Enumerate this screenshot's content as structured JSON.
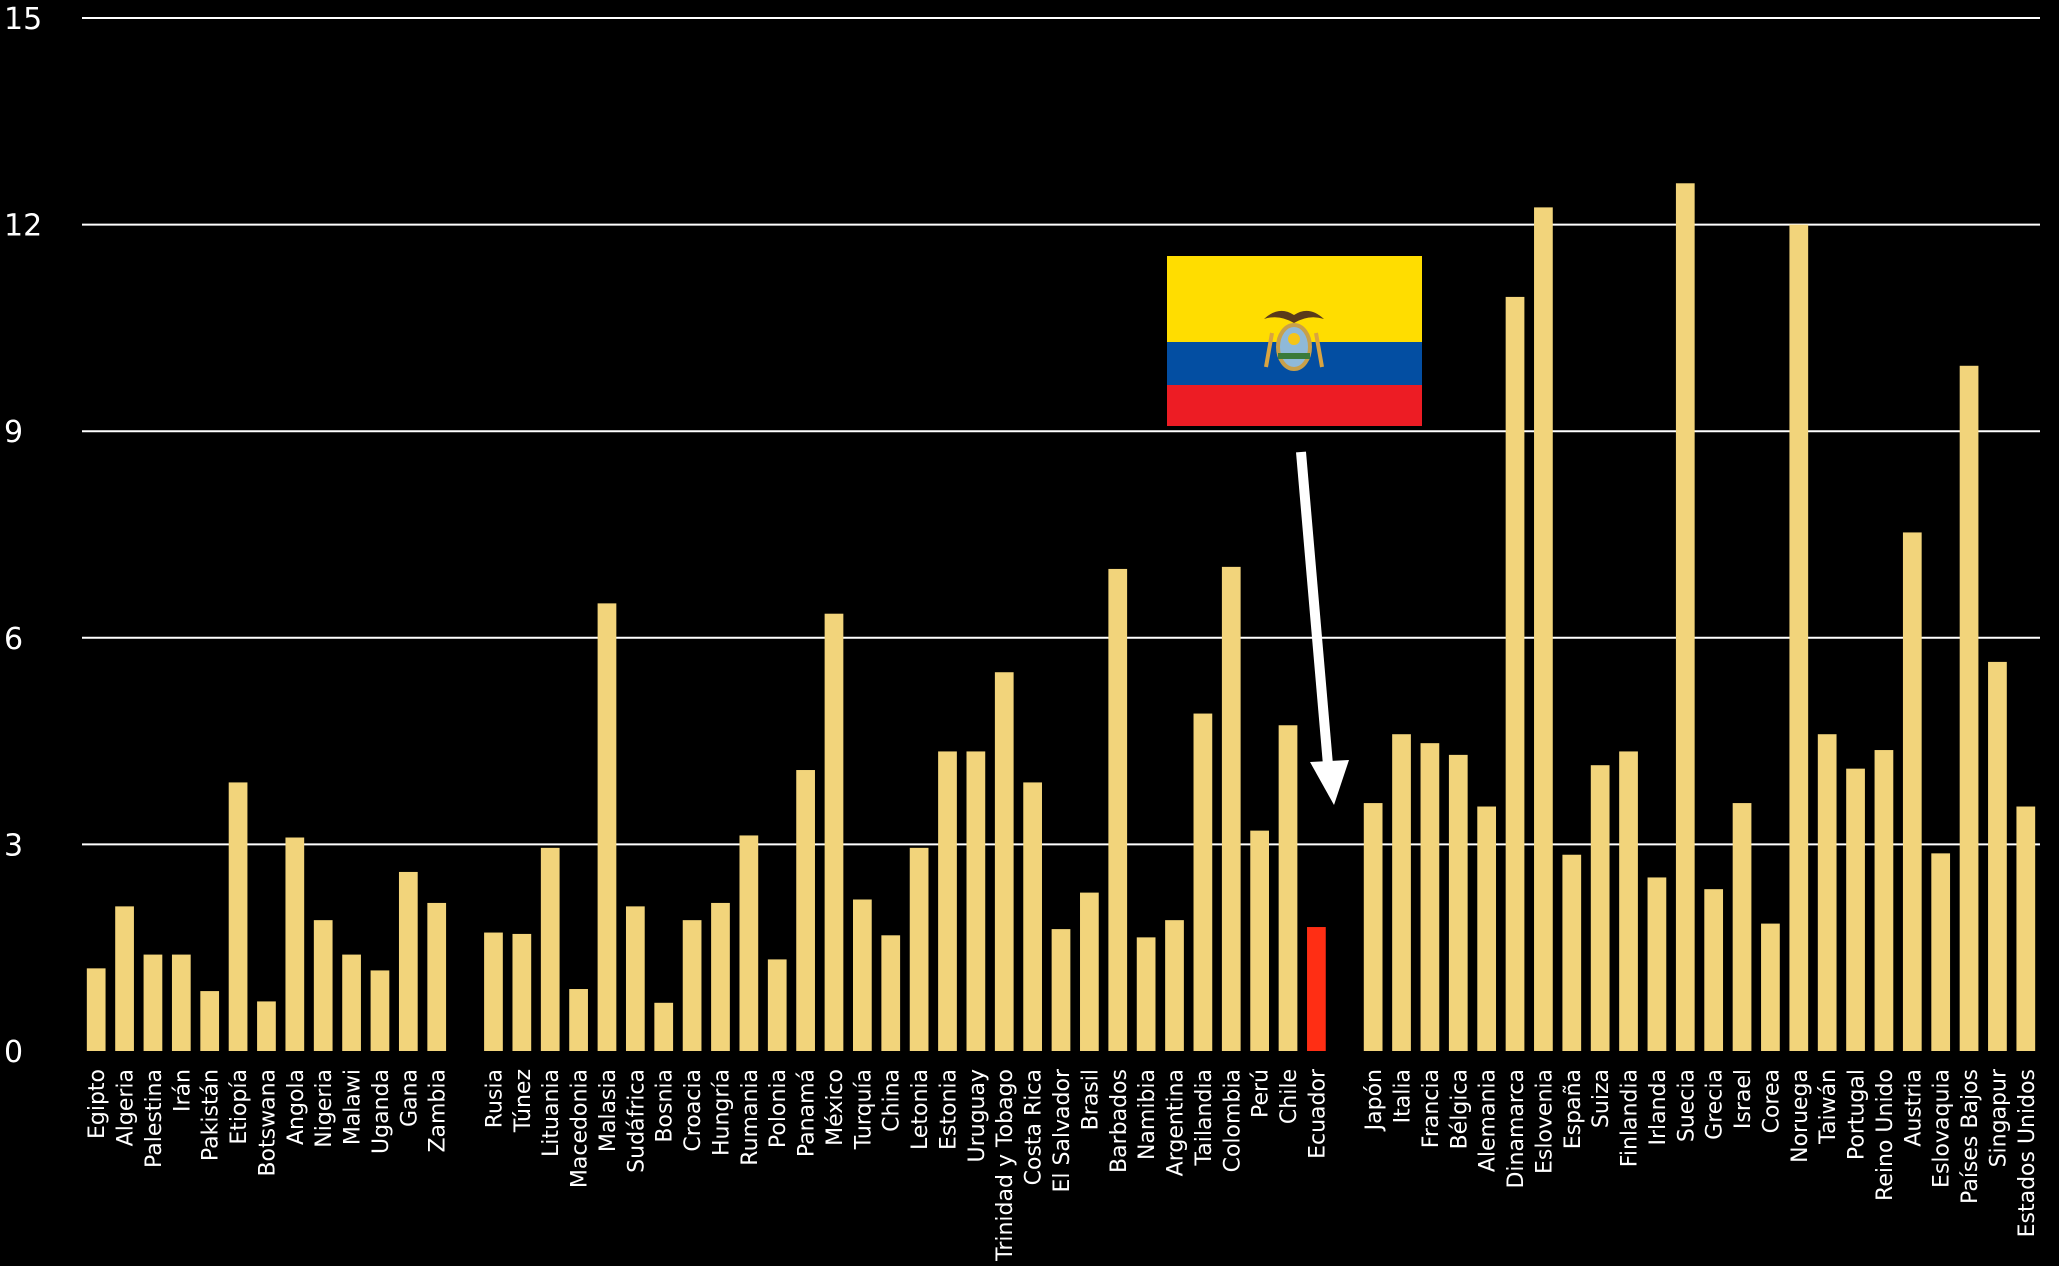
{
  "chart_data": {
    "type": "bar",
    "title": "",
    "xlabel": "",
    "ylabel": "",
    "ylim": [
      0,
      15
    ],
    "yticks": [
      0,
      3,
      6,
      9,
      12,
      15
    ],
    "grid": true,
    "colors": {
      "default": "#f2d47b",
      "highlight": "#ff2e14",
      "background": "#000000",
      "grid": "#ffffff"
    },
    "highlight_category": "Ecuador",
    "annotation": {
      "type": "arrow-with-flag",
      "target": "Ecuador",
      "flag": "Ecuador flag",
      "arrow_color": "#ffffff"
    },
    "categories": [
      "Egipto",
      "Algeria",
      "Palestina",
      "Irán",
      "Pakistán",
      "Etiopía",
      "Botswana",
      "Angola",
      "Nigeria",
      "Malawi",
      "Uganda",
      "Gana",
      "Zambia",
      "",
      "Rusia",
      "Túnez",
      "Lituania",
      "Macedonia",
      "Malasia",
      "Sudáfrica",
      "Bosnia",
      "Croacia",
      "Hungría",
      "Rumania",
      "Polonia",
      "Panamá",
      "México",
      "Turquía",
      "China",
      "Letonia",
      "Estonia",
      "Uruguay",
      "Trinidad y Tobago",
      "Costa Rica",
      "El Salvador",
      "Brasil",
      "Barbados",
      "Namibia",
      "Argentina",
      "Tailandia",
      "Colombia",
      "Perú",
      "Chile",
      "Ecuador",
      "",
      "Japón",
      "Italia",
      "Francia",
      "Bélgica",
      "Alemania",
      "Dinamarca",
      "Eslovenia",
      "España",
      "Suiza",
      "Finlandia",
      "Irlanda",
      "Suecia",
      "Grecia",
      "Israel",
      "Corea",
      "Noruega",
      "Taiwán",
      "Portugal",
      "Reino Unido",
      "Austria",
      "Eslovaquia",
      "Países Bajos",
      "Singapur",
      "Estados Unidos"
    ],
    "values": [
      1.2,
      2.1,
      1.4,
      1.4,
      0.87,
      3.9,
      0.72,
      3.1,
      1.9,
      1.4,
      1.17,
      2.6,
      2.15,
      null,
      1.72,
      1.7,
      2.95,
      0.9,
      6.5,
      2.1,
      0.7,
      1.9,
      2.15,
      3.13,
      1.33,
      4.08,
      6.35,
      2.2,
      1.68,
      2.95,
      4.35,
      4.35,
      5.5,
      3.9,
      1.77,
      2.3,
      7.0,
      1.65,
      1.9,
      4.9,
      7.03,
      3.2,
      4.73,
      1.8,
      null,
      3.6,
      4.6,
      4.47,
      4.3,
      3.55,
      10.95,
      12.25,
      2.85,
      4.15,
      4.35,
      2.52,
      12.6,
      2.35,
      3.6,
      1.85,
      12.0,
      4.6,
      4.1,
      4.37,
      7.53,
      2.87,
      9.95,
      5.65,
      3.55
    ]
  }
}
